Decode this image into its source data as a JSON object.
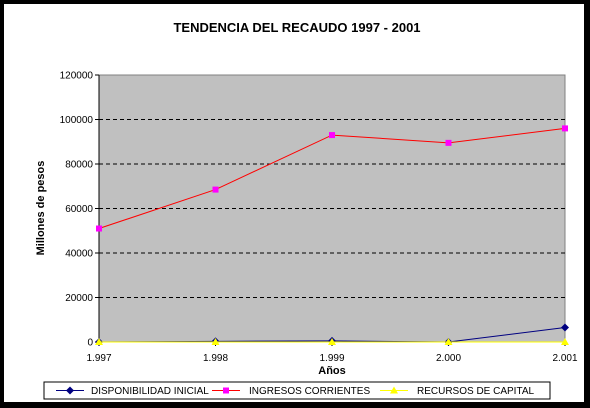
{
  "chart_data": {
    "type": "line",
    "title": "TENDENCIA DEL RECAUDO 1997 - 2001",
    "xlabel": "Años",
    "ylabel": "Millones de pesos",
    "categories": [
      "1.997",
      "1.998",
      "1.999",
      "2.000",
      "2.001"
    ],
    "ylim": [
      0,
      120000
    ],
    "yticks": [
      "0",
      "20000",
      "40000",
      "60000",
      "80000",
      "100000",
      "120000"
    ],
    "grid": "horizontal-dashed",
    "legend_position": "bottom",
    "series": [
      {
        "name": "DISPONIBILIDAD INICIAL",
        "color": "#000080",
        "marker": "diamond",
        "values": [
          0,
          300,
          500,
          0,
          6500
        ]
      },
      {
        "name": "INGRESOS CORRIENTES",
        "color": "#FF0000",
        "marker_color": "#FF00FF",
        "marker": "square",
        "values": [
          51000,
          68500,
          93000,
          89500,
          96000
        ]
      },
      {
        "name": "RECURSOS DE CAPITAL",
        "color": "#FFFF00",
        "marker": "triangle",
        "values": [
          0,
          0,
          0,
          0,
          0
        ]
      }
    ]
  }
}
